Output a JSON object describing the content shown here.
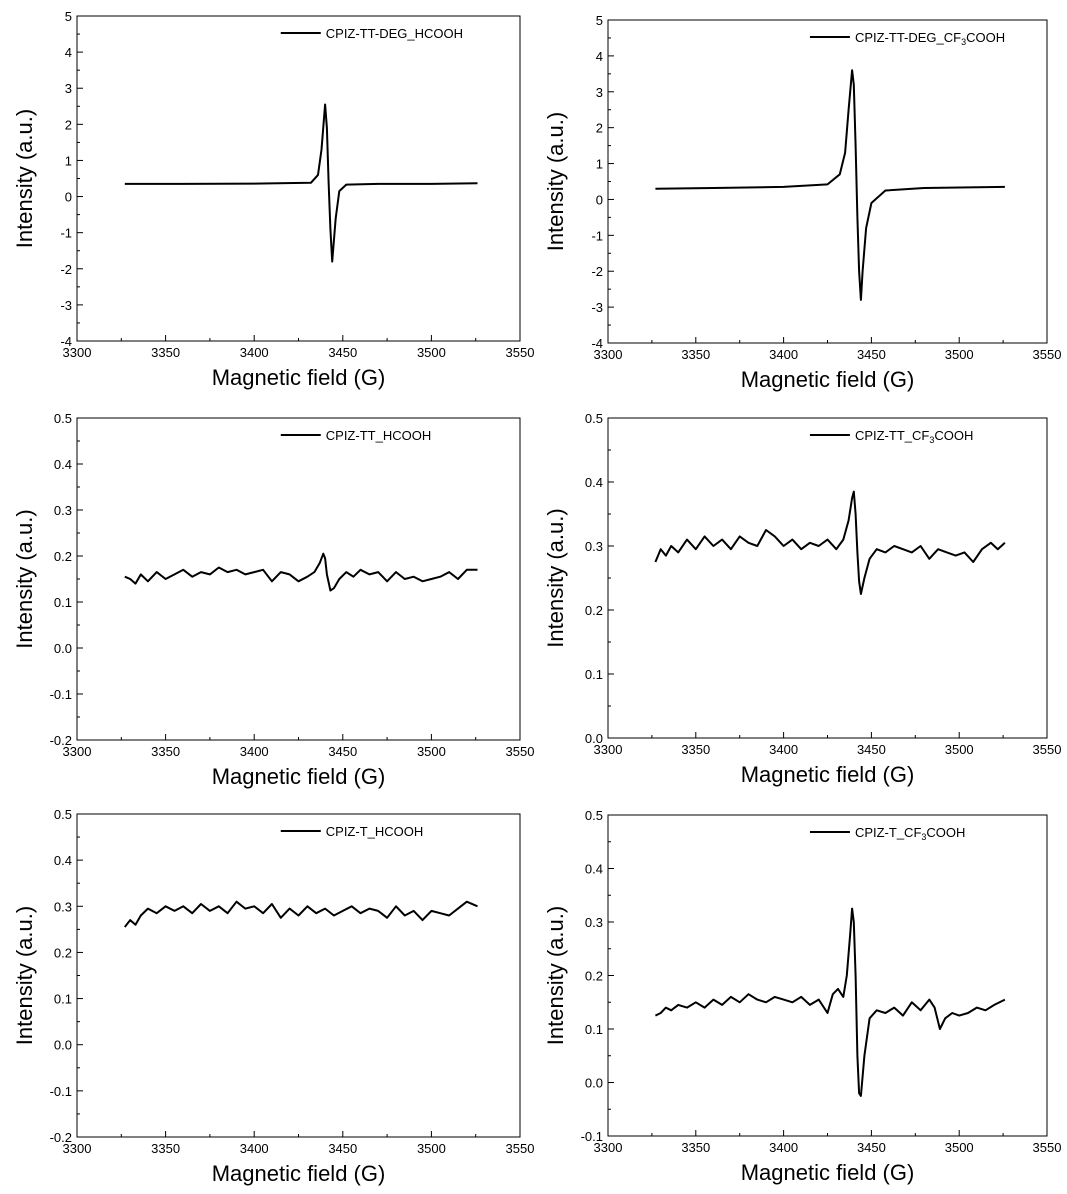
{
  "figure": {
    "line_color": "#000000",
    "background": "#ffffff"
  },
  "chart_data": [
    {
      "type": "line",
      "panel": "top-left",
      "xlabel": "Magnetic field (G)",
      "ylabel": "Intensity (a.u.)",
      "xlim": [
        3300,
        3550
      ],
      "ylim": [
        -4,
        5
      ],
      "xticks": [
        "3300",
        "3350",
        "3400",
        "3450",
        "3500",
        "3550"
      ],
      "yticks": [
        "-4",
        "-3",
        "-2",
        "-1",
        "0",
        "1",
        "2",
        "3",
        "4",
        "5"
      ],
      "legend_position": "top-right",
      "series": [
        {
          "name": "CPIZ-TT-DEG_HCOOH",
          "x": [
            3327,
            3360,
            3400,
            3432,
            3436,
            3438,
            3440,
            3441,
            3442,
            3443,
            3444,
            3446,
            3448,
            3452,
            3470,
            3500,
            3526
          ],
          "y": [
            0.35,
            0.35,
            0.36,
            0.38,
            0.6,
            1.3,
            2.55,
            1.9,
            0.4,
            -0.9,
            -1.8,
            -0.6,
            0.15,
            0.33,
            0.35,
            0.35,
            0.37
          ]
        }
      ]
    },
    {
      "type": "line",
      "panel": "top-right",
      "xlabel": "Magnetic field (G)",
      "ylabel": "Intensity (a.u.)",
      "xlim": [
        3300,
        3550
      ],
      "ylim": [
        -4,
        5
      ],
      "xticks": [
        "3300",
        "3350",
        "3400",
        "3450",
        "3500",
        "3550"
      ],
      "yticks": [
        "-4",
        "-3",
        "-2",
        "-1",
        "0",
        "1",
        "2",
        "3",
        "4",
        "5"
      ],
      "legend_position": "top-right",
      "series": [
        {
          "name": "CPIZ-TT-DEG_CF₃COOH",
          "x": [
            3327,
            3360,
            3400,
            3425,
            3432,
            3435,
            3437,
            3439,
            3440,
            3441,
            3442,
            3443,
            3444,
            3445,
            3447,
            3450,
            3458,
            3480,
            3526
          ],
          "y": [
            0.3,
            0.32,
            0.35,
            0.42,
            0.7,
            1.3,
            2.5,
            3.6,
            3.2,
            1.5,
            -0.5,
            -2.0,
            -2.8,
            -2.0,
            -0.8,
            -0.1,
            0.25,
            0.32,
            0.35
          ]
        }
      ]
    },
    {
      "type": "line",
      "panel": "middle-left",
      "xlabel": "Magnetic field (G)",
      "ylabel": "Intensity (a.u.)",
      "xlim": [
        3300,
        3550
      ],
      "ylim": [
        -0.2,
        0.5
      ],
      "xticks": [
        "3300",
        "3350",
        "3400",
        "3450",
        "3500",
        "3550"
      ],
      "yticks": [
        "-0.2",
        "-0.1",
        "0.0",
        "0.1",
        "0.2",
        "0.3",
        "0.4",
        "0.5"
      ],
      "legend_position": "top-right",
      "series": [
        {
          "name": "CPIZ-TT_HCOOH",
          "x": [
            3327,
            3330,
            3333,
            3336,
            3340,
            3345,
            3350,
            3355,
            3360,
            3365,
            3370,
            3375,
            3380,
            3385,
            3390,
            3395,
            3400,
            3405,
            3410,
            3415,
            3420,
            3425,
            3430,
            3434,
            3437,
            3439,
            3440,
            3441,
            3443,
            3445,
            3448,
            3452,
            3456,
            3460,
            3465,
            3470,
            3475,
            3480,
            3485,
            3490,
            3495,
            3500,
            3505,
            3510,
            3515,
            3520,
            3526
          ],
          "y": [
            0.155,
            0.15,
            0.14,
            0.16,
            0.145,
            0.165,
            0.15,
            0.16,
            0.17,
            0.155,
            0.165,
            0.16,
            0.175,
            0.165,
            0.17,
            0.16,
            0.165,
            0.17,
            0.145,
            0.165,
            0.16,
            0.145,
            0.155,
            0.165,
            0.185,
            0.205,
            0.195,
            0.16,
            0.125,
            0.13,
            0.15,
            0.165,
            0.155,
            0.17,
            0.16,
            0.165,
            0.145,
            0.165,
            0.15,
            0.155,
            0.145,
            0.15,
            0.155,
            0.165,
            0.15,
            0.17,
            0.17
          ]
        }
      ]
    },
    {
      "type": "line",
      "panel": "middle-right",
      "xlabel": "Magnetic field (G)",
      "ylabel": "Intensity (a.u.)",
      "xlim": [
        3300,
        3550
      ],
      "ylim": [
        0.0,
        0.5
      ],
      "xticks": [
        "3300",
        "3350",
        "3400",
        "3450",
        "3500",
        "3550"
      ],
      "yticks": [
        "0.0",
        "0.1",
        "0.2",
        "0.3",
        "0.4",
        "0.5"
      ],
      "legend_position": "top-right",
      "series": [
        {
          "name": "CPIZ-TT_CF₃COOH",
          "x": [
            3327,
            3330,
            3333,
            3336,
            3340,
            3345,
            3350,
            3355,
            3360,
            3365,
            3370,
            3375,
            3380,
            3385,
            3390,
            3395,
            3400,
            3405,
            3410,
            3415,
            3420,
            3425,
            3430,
            3434,
            3437,
            3439,
            3440,
            3441,
            3442,
            3443,
            3444,
            3446,
            3449,
            3453,
            3458,
            3463,
            3468,
            3473,
            3478,
            3483,
            3488,
            3493,
            3498,
            3503,
            3508,
            3513,
            3518,
            3522,
            3526
          ],
          "y": [
            0.275,
            0.295,
            0.285,
            0.3,
            0.29,
            0.31,
            0.295,
            0.315,
            0.3,
            0.31,
            0.295,
            0.315,
            0.305,
            0.3,
            0.325,
            0.315,
            0.3,
            0.31,
            0.295,
            0.305,
            0.3,
            0.31,
            0.295,
            0.31,
            0.34,
            0.375,
            0.385,
            0.35,
            0.29,
            0.245,
            0.225,
            0.25,
            0.28,
            0.295,
            0.29,
            0.3,
            0.295,
            0.29,
            0.3,
            0.28,
            0.295,
            0.29,
            0.285,
            0.29,
            0.275,
            0.295,
            0.305,
            0.295,
            0.305
          ]
        }
      ]
    },
    {
      "type": "line",
      "panel": "bottom-left",
      "xlabel": "Magnetic field (G)",
      "ylabel": "Intensity (a.u.)",
      "xlim": [
        3300,
        3550
      ],
      "ylim": [
        -0.2,
        0.5
      ],
      "xticks": [
        "3300",
        "3350",
        "3400",
        "3450",
        "3500",
        "3550"
      ],
      "yticks": [
        "-0.2",
        "-0.1",
        "0.0",
        "0.1",
        "0.2",
        "0.3",
        "0.4",
        "0.5"
      ],
      "legend_position": "top-right",
      "series": [
        {
          "name": "CPIZ-T_HCOOH",
          "x": [
            3327,
            3330,
            3333,
            3336,
            3340,
            3345,
            3350,
            3355,
            3360,
            3365,
            3370,
            3375,
            3380,
            3385,
            3390,
            3395,
            3400,
            3405,
            3410,
            3415,
            3420,
            3425,
            3430,
            3435,
            3440,
            3445,
            3450,
            3455,
            3460,
            3465,
            3470,
            3475,
            3480,
            3485,
            3490,
            3495,
            3500,
            3505,
            3510,
            3515,
            3520,
            3526
          ],
          "y": [
            0.255,
            0.27,
            0.26,
            0.28,
            0.295,
            0.285,
            0.3,
            0.29,
            0.3,
            0.285,
            0.305,
            0.29,
            0.3,
            0.285,
            0.31,
            0.295,
            0.3,
            0.285,
            0.305,
            0.275,
            0.295,
            0.28,
            0.3,
            0.285,
            0.295,
            0.28,
            0.29,
            0.3,
            0.285,
            0.295,
            0.29,
            0.275,
            0.3,
            0.28,
            0.29,
            0.27,
            0.29,
            0.285,
            0.28,
            0.295,
            0.31,
            0.3
          ]
        }
      ]
    },
    {
      "type": "line",
      "panel": "bottom-right",
      "xlabel": "Magnetic field (G)",
      "ylabel": "Intensity (a.u.)",
      "xlim": [
        3300,
        3550
      ],
      "ylim": [
        -0.1,
        0.5
      ],
      "xticks": [
        "3300",
        "3350",
        "3400",
        "3450",
        "3500",
        "3550"
      ],
      "yticks": [
        "-0.1",
        "0.0",
        "0.1",
        "0.2",
        "0.3",
        "0.4",
        "0.5"
      ],
      "legend_position": "top-right",
      "series": [
        {
          "name": "CPIZ-T_CF₃COOH",
          "x": [
            3327,
            3330,
            3333,
            3336,
            3340,
            3345,
            3350,
            3355,
            3360,
            3365,
            3370,
            3375,
            3380,
            3385,
            3390,
            3395,
            3400,
            3405,
            3410,
            3415,
            3420,
            3425,
            3428,
            3431,
            3434,
            3436,
            3438,
            3439,
            3440,
            3441,
            3442,
            3443,
            3444,
            3446,
            3449,
            3453,
            3458,
            3463,
            3468,
            3473,
            3478,
            3483,
            3486,
            3489,
            3492,
            3496,
            3500,
            3505,
            3510,
            3515,
            3520,
            3526
          ],
          "y": [
            0.125,
            0.13,
            0.14,
            0.135,
            0.145,
            0.14,
            0.15,
            0.14,
            0.155,
            0.145,
            0.16,
            0.15,
            0.165,
            0.155,
            0.15,
            0.16,
            0.155,
            0.15,
            0.16,
            0.145,
            0.155,
            0.13,
            0.165,
            0.175,
            0.16,
            0.2,
            0.28,
            0.325,
            0.3,
            0.2,
            0.05,
            -0.02,
            -0.025,
            0.05,
            0.12,
            0.135,
            0.13,
            0.14,
            0.125,
            0.15,
            0.135,
            0.155,
            0.14,
            0.1,
            0.12,
            0.13,
            0.125,
            0.13,
            0.14,
            0.135,
            0.145,
            0.155
          ]
        }
      ]
    }
  ]
}
